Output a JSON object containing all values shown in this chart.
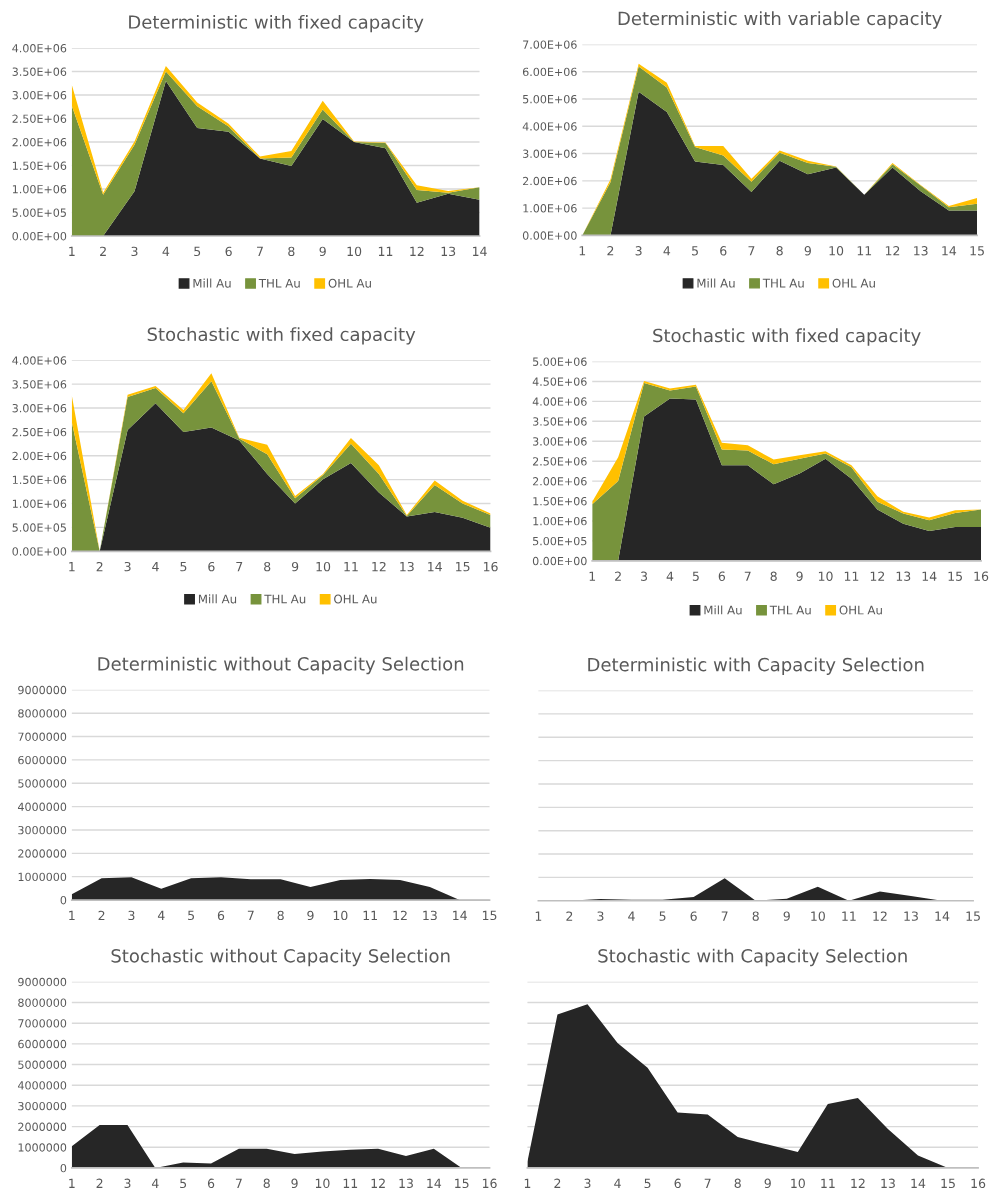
{
  "chart_data": [
    {
      "type": "area",
      "title": "Deterministic with fixed capacity",
      "stacked": true,
      "grid": "y",
      "legend": "bottom",
      "x": [
        1,
        2,
        3,
        4,
        5,
        6,
        7,
        8,
        9,
        10,
        11,
        12,
        13,
        14
      ],
      "xlim": [
        1,
        14
      ],
      "xticks": [
        1,
        2,
        3,
        4,
        5,
        6,
        7,
        8,
        9,
        10,
        11,
        12,
        13,
        14
      ],
      "ylim": [
        0,
        4000000
      ],
      "yticks": [
        {
          "value": 0,
          "label": "0.00E+00"
        },
        {
          "value": 500000,
          "label": "5.00E+05"
        },
        {
          "value": 1000000,
          "label": "1.00E+06"
        },
        {
          "value": 1500000,
          "label": "1.50E+06"
        },
        {
          "value": 2000000,
          "label": "2.00E+06"
        },
        {
          "value": 2500000,
          "label": "2.50E+06"
        },
        {
          "value": 3000000,
          "label": "3.00E+06"
        },
        {
          "value": 3500000,
          "label": "3.50E+06"
        },
        {
          "value": 4000000,
          "label": "4.00E+06"
        }
      ],
      "series": [
        {
          "name": "Mill Au",
          "color": "#262626",
          "values": [
            0,
            0,
            950000,
            3300000,
            2300000,
            2220000,
            1650000,
            1490000,
            2490000,
            2000000,
            1870000,
            710000,
            900000,
            770000
          ]
        },
        {
          "name": "THL Au",
          "color": "#77933c",
          "values": [
            2770000,
            880000,
            990000,
            200000,
            460000,
            110000,
            0,
            180000,
            200000,
            0,
            110000,
            270000,
            20000,
            270000
          ]
        },
        {
          "name": "OHL Au",
          "color": "#ffc000",
          "values": [
            450000,
            40000,
            70000,
            120000,
            80000,
            60000,
            40000,
            140000,
            190000,
            10000,
            10000,
            100000,
            40000,
            0
          ]
        }
      ]
    },
    {
      "type": "area",
      "title": "Deterministic with variable capacity",
      "stacked": true,
      "grid": "y",
      "legend": "bottom",
      "x": [
        1,
        2,
        3,
        4,
        5,
        6,
        7,
        8,
        9,
        10,
        11,
        12,
        13,
        14,
        15
      ],
      "xlim": [
        1,
        15
      ],
      "xticks": [
        1,
        2,
        3,
        4,
        5,
        6,
        7,
        8,
        9,
        10,
        11,
        12,
        13,
        14,
        15
      ],
      "ylim": [
        0,
        7000000
      ],
      "yticks": [
        {
          "value": 0,
          "label": "0.00E+00"
        },
        {
          "value": 1000000,
          "label": "1.00E+06"
        },
        {
          "value": 2000000,
          "label": "2.00E+06"
        },
        {
          "value": 3000000,
          "label": "3.00E+06"
        },
        {
          "value": 4000000,
          "label": "4.00E+06"
        },
        {
          "value": 5000000,
          "label": "5.00E+06"
        },
        {
          "value": 6000000,
          "label": "6.00E+06"
        },
        {
          "value": 7000000,
          "label": "7.00E+06"
        }
      ],
      "series": [
        {
          "name": "Mill Au",
          "color": "#262626",
          "values": [
            0,
            0,
            5270000,
            4520000,
            2710000,
            2580000,
            1590000,
            2740000,
            2240000,
            2490000,
            1490000,
            2490000,
            1620000,
            910000,
            910000
          ]
        },
        {
          "name": "THL Au",
          "color": "#77933c",
          "values": [
            0,
            1950000,
            920000,
            900000,
            530000,
            350000,
            380000,
            290000,
            410000,
            30000,
            0,
            120000,
            210000,
            120000,
            250000
          ]
        },
        {
          "name": "OHL Au",
          "color": "#ffc000",
          "values": [
            0,
            100000,
            100000,
            180000,
            40000,
            350000,
            110000,
            80000,
            90000,
            10000,
            0,
            40000,
            20000,
            50000,
            210000
          ]
        }
      ]
    },
    {
      "type": "area",
      "title": "Stochastic with fixed capacity",
      "stacked": true,
      "grid": "y",
      "legend": "bottom",
      "x": [
        1,
        2,
        3,
        4,
        5,
        6,
        7,
        8,
        9,
        10,
        11,
        12,
        13,
        14,
        15,
        16
      ],
      "xlim": [
        1,
        16
      ],
      "xticks": [
        1,
        2,
        3,
        4,
        5,
        6,
        7,
        8,
        9,
        10,
        11,
        12,
        13,
        14,
        15,
        16
      ],
      "ylim": [
        0,
        4000000
      ],
      "yticks": [
        {
          "value": 0,
          "label": "0.00E+00"
        },
        {
          "value": 500000,
          "label": "5.00E+05"
        },
        {
          "value": 1000000,
          "label": "1.00E+06"
        },
        {
          "value": 1500000,
          "label": "1.50E+06"
        },
        {
          "value": 2000000,
          "label": "2.00E+06"
        },
        {
          "value": 2500000,
          "label": "2.50E+06"
        },
        {
          "value": 3000000,
          "label": "3.00E+06"
        },
        {
          "value": 3500000,
          "label": "3.50E+06"
        },
        {
          "value": 4000000,
          "label": "4.00E+06"
        }
      ],
      "series": [
        {
          "name": "Mill Au",
          "color": "#262626",
          "values": [
            0,
            0,
            2540000,
            3100000,
            2500000,
            2590000,
            2320000,
            1620000,
            1000000,
            1510000,
            1850000,
            1230000,
            730000,
            820000,
            700000,
            490000
          ]
        },
        {
          "name": "THL Au",
          "color": "#77933c",
          "values": [
            2710000,
            0,
            690000,
            320000,
            390000,
            970000,
            40000,
            410000,
            110000,
            90000,
            400000,
            390000,
            10000,
            570000,
            300000,
            270000
          ]
        },
        {
          "name": "OHL Au",
          "color": "#ffc000",
          "values": [
            560000,
            0,
            50000,
            40000,
            70000,
            170000,
            20000,
            200000,
            50000,
            20000,
            120000,
            180000,
            20000,
            90000,
            60000,
            30000
          ]
        }
      ]
    },
    {
      "type": "area",
      "title": "Stochastic with fixed capacity",
      "stacked": true,
      "grid": "y",
      "legend": "bottom",
      "x": [
        1,
        2,
        3,
        4,
        5,
        6,
        7,
        8,
        9,
        10,
        11,
        12,
        13,
        14,
        15,
        16
      ],
      "xlim": [
        1,
        16
      ],
      "xticks": [
        1,
        2,
        3,
        4,
        5,
        6,
        7,
        8,
        9,
        10,
        11,
        12,
        13,
        14,
        15,
        16
      ],
      "ylim": [
        0,
        5000000
      ],
      "yticks": [
        {
          "value": 0,
          "label": "0.00E+00"
        },
        {
          "value": 500000,
          "label": "5.00E+05"
        },
        {
          "value": 1000000,
          "label": "1.00E+06"
        },
        {
          "value": 1500000,
          "label": "1.50E+06"
        },
        {
          "value": 2000000,
          "label": "2.00E+06"
        },
        {
          "value": 2500000,
          "label": "2.50E+06"
        },
        {
          "value": 3000000,
          "label": "3.00E+06"
        },
        {
          "value": 3500000,
          "label": "3.50E+06"
        },
        {
          "value": 4000000,
          "label": "4.00E+06"
        },
        {
          "value": 4500000,
          "label": "4.50E+06"
        },
        {
          "value": 5000000,
          "label": "5.00E+06"
        }
      ],
      "series": [
        {
          "name": "Mill Au",
          "color": "#262626",
          "values": [
            0,
            0,
            3620000,
            4070000,
            4050000,
            2400000,
            2400000,
            1920000,
            2190000,
            2560000,
            2060000,
            1290000,
            930000,
            750000,
            850000,
            850000
          ]
        },
        {
          "name": "THL Au",
          "color": "#77933c",
          "values": [
            1420000,
            2000000,
            840000,
            200000,
            320000,
            390000,
            370000,
            500000,
            370000,
            130000,
            290000,
            190000,
            260000,
            270000,
            350000,
            440000
          ]
        },
        {
          "name": "OHL Au",
          "color": "#ffc000",
          "values": [
            60000,
            600000,
            50000,
            50000,
            50000,
            170000,
            130000,
            120000,
            90000,
            60000,
            50000,
            140000,
            40000,
            70000,
            70000,
            0
          ]
        }
      ]
    },
    {
      "type": "area",
      "title": "Deterministic without Capacity Selection",
      "grid": "y",
      "x": [
        1,
        2,
        3,
        4,
        5,
        6,
        7,
        8,
        9,
        10,
        11,
        12,
        13,
        14
      ],
      "xlim": [
        1,
        15
      ],
      "xticks": [
        1,
        2,
        3,
        4,
        5,
        6,
        7,
        8,
        9,
        10,
        11,
        12,
        13,
        14,
        15
      ],
      "ylim": [
        0,
        9000000
      ],
      "yticks": [
        0,
        1000000,
        2000000,
        3000000,
        4000000,
        5000000,
        6000000,
        7000000,
        8000000,
        9000000
      ],
      "series": [
        {
          "color": "#262626",
          "values": [
            250000,
            930000,
            980000,
            480000,
            930000,
            980000,
            890000,
            890000,
            560000,
            860000,
            900000,
            860000,
            560000,
            0
          ]
        }
      ]
    },
    {
      "type": "area",
      "title": "Deterministic with Capacity Selection",
      "grid": "y",
      "tick_labels": "x",
      "x": [
        1,
        2,
        3,
        4,
        5,
        6,
        7,
        8,
        9,
        10,
        11,
        12,
        13,
        14
      ],
      "xlim": [
        1,
        15
      ],
      "xticks": [
        1,
        2,
        3,
        4,
        5,
        6,
        7,
        8,
        9,
        10,
        11,
        12,
        13,
        14,
        15
      ],
      "ylim": [
        0,
        9000000
      ],
      "yticks": [
        0,
        1000000,
        2000000,
        3000000,
        4000000,
        5000000,
        6000000,
        7000000,
        8000000,
        9000000
      ],
      "series": [
        {
          "color": "#262626",
          "values": [
            0,
            0,
            70000,
            40000,
            40000,
            160000,
            960000,
            0,
            90000,
            600000,
            0,
            400000,
            200000,
            0
          ]
        }
      ]
    },
    {
      "type": "area",
      "title": "Stochastic without Capacity Selection",
      "grid": "y",
      "x": [
        1,
        2,
        3,
        4,
        5,
        6,
        7,
        8,
        9,
        10,
        11,
        12,
        13,
        14,
        15
      ],
      "xlim": [
        1,
        16
      ],
      "xticks": [
        1,
        2,
        3,
        4,
        5,
        6,
        7,
        8,
        9,
        10,
        11,
        12,
        13,
        14,
        15,
        16
      ],
      "ylim": [
        0,
        9000000
      ],
      "yticks": [
        0,
        1000000,
        2000000,
        3000000,
        4000000,
        5000000,
        6000000,
        7000000,
        8000000,
        9000000
      ],
      "series": [
        {
          "color": "#262626",
          "values": [
            1050000,
            2080000,
            2080000,
            0,
            270000,
            220000,
            930000,
            930000,
            680000,
            800000,
            880000,
            930000,
            580000,
            930000,
            0
          ]
        }
      ]
    },
    {
      "type": "area",
      "title": "Stochastic with Capacity Selection",
      "grid": "y",
      "tick_labels": "x",
      "x": [
        1,
        2,
        3,
        4,
        5,
        6,
        7,
        8,
        9,
        10,
        11,
        12,
        13,
        14,
        15
      ],
      "xlim": [
        1,
        16
      ],
      "xticks": [
        1,
        2,
        3,
        4,
        5,
        6,
        7,
        8,
        9,
        10,
        11,
        12,
        13,
        14,
        15,
        16
      ],
      "ylim": [
        0,
        9000000
      ],
      "yticks": [
        0,
        1000000,
        2000000,
        3000000,
        4000000,
        5000000,
        6000000,
        7000000,
        8000000,
        9000000
      ],
      "series": [
        {
          "color": "#262626",
          "values": [
            300000,
            7420000,
            7920000,
            6040000,
            4840000,
            2680000,
            2580000,
            1500000,
            1130000,
            770000,
            3090000,
            3380000,
            1880000,
            600000,
            0
          ]
        }
      ]
    }
  ]
}
